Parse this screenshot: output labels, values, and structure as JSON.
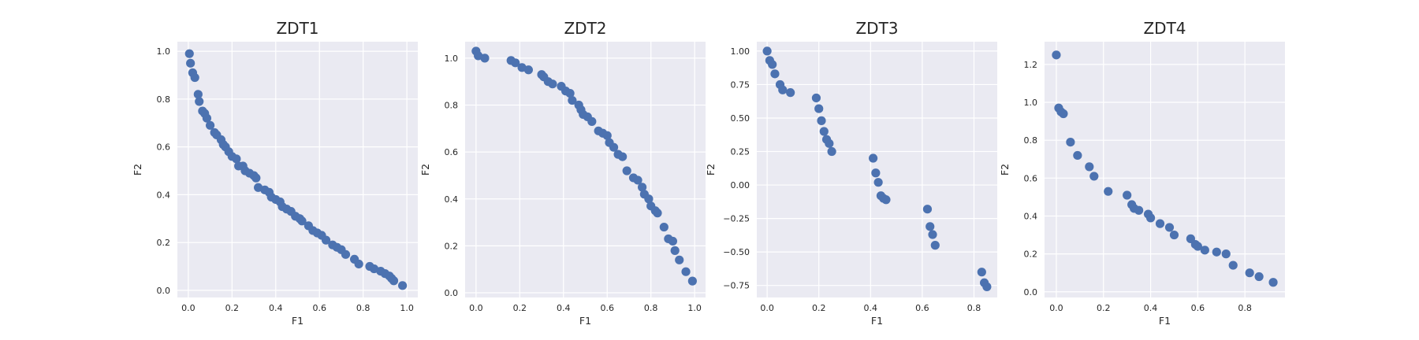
{
  "chart_data": [
    {
      "type": "scatter",
      "title": "ZDT1",
      "xlabel": "F1",
      "ylabel": "F2",
      "xlim": [
        -0.05,
        1.05
      ],
      "ylim": [
        -0.03,
        1.04
      ],
      "xticks": [
        0.0,
        0.2,
        0.4,
        0.6,
        0.8,
        1.0
      ],
      "xtick_labels": [
        "0.0",
        "0.2",
        "0.4",
        "0.6",
        "0.8",
        "1.0"
      ],
      "yticks": [
        0.0,
        0.2,
        0.4,
        0.6,
        0.8,
        1.0
      ],
      "ytick_labels": [
        "0.0",
        "0.2",
        "0.4",
        "0.6",
        "0.8",
        "1.0"
      ],
      "grid": true,
      "color": "#4C72B0",
      "points": [
        [
          0.005,
          0.99
        ],
        [
          0.01,
          0.95
        ],
        [
          0.02,
          0.91
        ],
        [
          0.03,
          0.89
        ],
        [
          0.045,
          0.82
        ],
        [
          0.05,
          0.79
        ],
        [
          0.065,
          0.75
        ],
        [
          0.075,
          0.74
        ],
        [
          0.085,
          0.72
        ],
        [
          0.1,
          0.69
        ],
        [
          0.12,
          0.66
        ],
        [
          0.13,
          0.65
        ],
        [
          0.15,
          0.63
        ],
        [
          0.16,
          0.61
        ],
        [
          0.17,
          0.6
        ],
        [
          0.185,
          0.58
        ],
        [
          0.2,
          0.56
        ],
        [
          0.22,
          0.55
        ],
        [
          0.23,
          0.52
        ],
        [
          0.25,
          0.52
        ],
        [
          0.26,
          0.5
        ],
        [
          0.28,
          0.49
        ],
        [
          0.3,
          0.48
        ],
        [
          0.31,
          0.47
        ],
        [
          0.32,
          0.43
        ],
        [
          0.35,
          0.42
        ],
        [
          0.37,
          0.41
        ],
        [
          0.38,
          0.39
        ],
        [
          0.4,
          0.38
        ],
        [
          0.42,
          0.37
        ],
        [
          0.43,
          0.35
        ],
        [
          0.45,
          0.34
        ],
        [
          0.47,
          0.33
        ],
        [
          0.49,
          0.31
        ],
        [
          0.51,
          0.3
        ],
        [
          0.52,
          0.29
        ],
        [
          0.55,
          0.27
        ],
        [
          0.57,
          0.25
        ],
        [
          0.59,
          0.24
        ],
        [
          0.61,
          0.23
        ],
        [
          0.63,
          0.21
        ],
        [
          0.66,
          0.19
        ],
        [
          0.68,
          0.18
        ],
        [
          0.7,
          0.17
        ],
        [
          0.72,
          0.15
        ],
        [
          0.76,
          0.13
        ],
        [
          0.78,
          0.11
        ],
        [
          0.83,
          0.1
        ],
        [
          0.85,
          0.09
        ],
        [
          0.88,
          0.08
        ],
        [
          0.9,
          0.07
        ],
        [
          0.92,
          0.06
        ],
        [
          0.93,
          0.05
        ],
        [
          0.94,
          0.04
        ],
        [
          0.98,
          0.02
        ]
      ]
    },
    {
      "type": "scatter",
      "title": "ZDT2",
      "xlabel": "F1",
      "ylabel": "F2",
      "xlim": [
        -0.05,
        1.05
      ],
      "ylim": [
        -0.02,
        1.07
      ],
      "xticks": [
        0.0,
        0.2,
        0.4,
        0.6,
        0.8,
        1.0
      ],
      "xtick_labels": [
        "0.0",
        "0.2",
        "0.4",
        "0.6",
        "0.8",
        "1.0"
      ],
      "yticks": [
        0.0,
        0.2,
        0.4,
        0.6,
        0.8,
        1.0
      ],
      "ytick_labels": [
        "0.0",
        "0.2",
        "0.4",
        "0.6",
        "0.8",
        "1.0"
      ],
      "grid": true,
      "color": "#4C72B0",
      "points": [
        [
          0.0,
          1.03
        ],
        [
          0.01,
          1.01
        ],
        [
          0.04,
          1.0
        ],
        [
          0.16,
          0.99
        ],
        [
          0.18,
          0.98
        ],
        [
          0.21,
          0.96
        ],
        [
          0.24,
          0.95
        ],
        [
          0.3,
          0.93
        ],
        [
          0.31,
          0.92
        ],
        [
          0.33,
          0.9
        ],
        [
          0.35,
          0.89
        ],
        [
          0.39,
          0.88
        ],
        [
          0.41,
          0.86
        ],
        [
          0.43,
          0.85
        ],
        [
          0.44,
          0.82
        ],
        [
          0.47,
          0.8
        ],
        [
          0.48,
          0.78
        ],
        [
          0.49,
          0.76
        ],
        [
          0.51,
          0.75
        ],
        [
          0.53,
          0.73
        ],
        [
          0.56,
          0.69
        ],
        [
          0.58,
          0.68
        ],
        [
          0.6,
          0.67
        ],
        [
          0.61,
          0.64
        ],
        [
          0.63,
          0.62
        ],
        [
          0.65,
          0.59
        ],
        [
          0.67,
          0.58
        ],
        [
          0.69,
          0.52
        ],
        [
          0.72,
          0.49
        ],
        [
          0.74,
          0.48
        ],
        [
          0.76,
          0.45
        ],
        [
          0.77,
          0.42
        ],
        [
          0.79,
          0.4
        ],
        [
          0.8,
          0.37
        ],
        [
          0.82,
          0.35
        ],
        [
          0.83,
          0.34
        ],
        [
          0.86,
          0.28
        ],
        [
          0.88,
          0.23
        ],
        [
          0.9,
          0.22
        ],
        [
          0.91,
          0.18
        ],
        [
          0.93,
          0.14
        ],
        [
          0.96,
          0.09
        ],
        [
          0.99,
          0.05
        ]
      ]
    },
    {
      "type": "scatter",
      "title": "ZDT3",
      "xlabel": "F1",
      "ylabel": "F2",
      "xlim": [
        -0.04,
        0.89
      ],
      "ylim": [
        -0.84,
        1.07
      ],
      "xticks": [
        0.0,
        0.2,
        0.4,
        0.6,
        0.8
      ],
      "xtick_labels": [
        "0.0",
        "0.2",
        "0.4",
        "0.6",
        "0.8"
      ],
      "yticks": [
        -0.75,
        -0.5,
        -0.25,
        0.0,
        0.25,
        0.5,
        0.75,
        1.0
      ],
      "ytick_labels": [
        "−0.75",
        "−0.50",
        "−0.25",
        "0.00",
        "0.25",
        "0.50",
        "0.75",
        "1.00"
      ],
      "grid": true,
      "color": "#4C72B0",
      "points": [
        [
          0.0,
          1.0
        ],
        [
          0.01,
          0.93
        ],
        [
          0.02,
          0.9
        ],
        [
          0.03,
          0.83
        ],
        [
          0.05,
          0.75
        ],
        [
          0.06,
          0.71
        ],
        [
          0.09,
          0.69
        ],
        [
          0.19,
          0.65
        ],
        [
          0.2,
          0.57
        ],
        [
          0.21,
          0.48
        ],
        [
          0.22,
          0.4
        ],
        [
          0.23,
          0.34
        ],
        [
          0.24,
          0.31
        ],
        [
          0.25,
          0.25
        ],
        [
          0.41,
          0.2
        ],
        [
          0.42,
          0.09
        ],
        [
          0.43,
          0.02
        ],
        [
          0.44,
          -0.08
        ],
        [
          0.45,
          -0.1
        ],
        [
          0.46,
          -0.11
        ],
        [
          0.62,
          -0.18
        ],
        [
          0.63,
          -0.31
        ],
        [
          0.64,
          -0.37
        ],
        [
          0.65,
          -0.45
        ],
        [
          0.83,
          -0.65
        ],
        [
          0.84,
          -0.73
        ],
        [
          0.85,
          -0.76
        ]
      ]
    },
    {
      "type": "scatter",
      "title": "ZDT4",
      "xlabel": "F1",
      "ylabel": "F2",
      "xlim": [
        -0.05,
        0.97
      ],
      "ylim": [
        -0.03,
        1.32
      ],
      "xticks": [
        0.0,
        0.2,
        0.4,
        0.6,
        0.8
      ],
      "xtick_labels": [
        "0.0",
        "0.2",
        "0.4",
        "0.6",
        "0.8"
      ],
      "yticks": [
        0.0,
        0.2,
        0.4,
        0.6,
        0.8,
        1.0,
        1.2
      ],
      "ytick_labels": [
        "0.0",
        "0.2",
        "0.4",
        "0.6",
        "0.8",
        "1.0",
        "1.2"
      ],
      "grid": true,
      "color": "#4C72B0",
      "points": [
        [
          0.0,
          1.25
        ],
        [
          0.01,
          0.97
        ],
        [
          0.02,
          0.95
        ],
        [
          0.03,
          0.94
        ],
        [
          0.06,
          0.79
        ],
        [
          0.09,
          0.72
        ],
        [
          0.14,
          0.66
        ],
        [
          0.16,
          0.61
        ],
        [
          0.22,
          0.53
        ],
        [
          0.3,
          0.51
        ],
        [
          0.32,
          0.46
        ],
        [
          0.33,
          0.44
        ],
        [
          0.35,
          0.43
        ],
        [
          0.39,
          0.41
        ],
        [
          0.4,
          0.39
        ],
        [
          0.44,
          0.36
        ],
        [
          0.48,
          0.34
        ],
        [
          0.5,
          0.3
        ],
        [
          0.57,
          0.28
        ],
        [
          0.59,
          0.25
        ],
        [
          0.6,
          0.24
        ],
        [
          0.63,
          0.22
        ],
        [
          0.68,
          0.21
        ],
        [
          0.72,
          0.2
        ],
        [
          0.75,
          0.14
        ],
        [
          0.82,
          0.1
        ],
        [
          0.86,
          0.08
        ],
        [
          0.92,
          0.05
        ]
      ]
    }
  ]
}
